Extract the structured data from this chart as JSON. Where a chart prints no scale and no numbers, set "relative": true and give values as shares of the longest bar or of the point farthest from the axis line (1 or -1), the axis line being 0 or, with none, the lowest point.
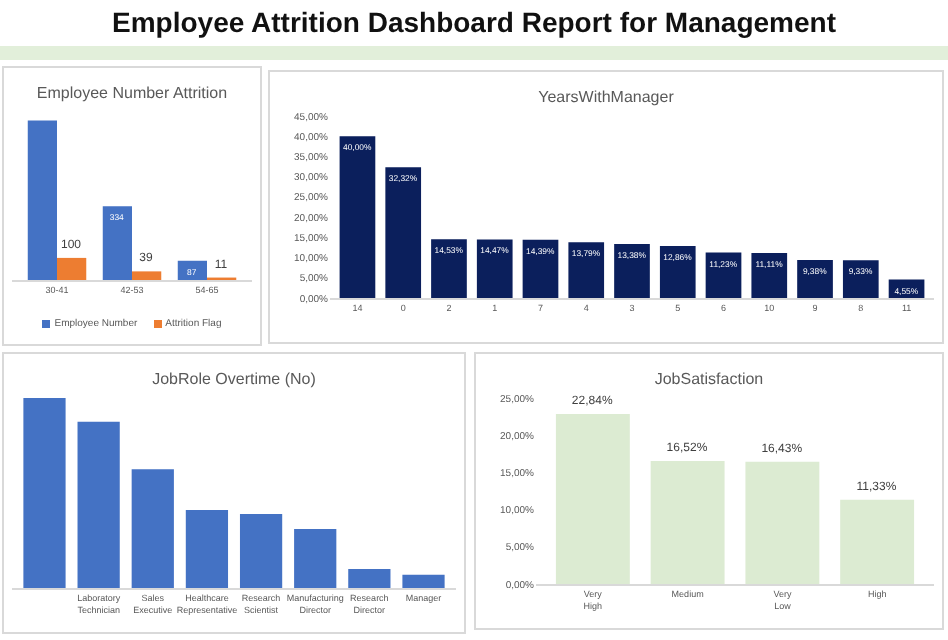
{
  "chart_data": [
    {
      "type": "other",
      "title": "Employee Attrition Dashboard Report for Management"
    },
    {
      "type": "bar",
      "title": "Employee Number Attrition",
      "categories": [
        "30-41",
        "42-53",
        "54-65"
      ],
      "legend": "bottom",
      "series": [
        {
          "name": "Employee Number",
          "color": "#4472c4",
          "values": [
            722,
            334,
            87
          ],
          "value_labels": [
            null,
            "334",
            "87"
          ]
        },
        {
          "name": "Attrition Flag",
          "color": "#ed7d31",
          "values": [
            100,
            39,
            11
          ],
          "value_labels": [
            "100",
            "39",
            "11"
          ]
        }
      ]
    },
    {
      "type": "bar",
      "title": "YearsWithManager",
      "categories": [
        "14",
        "0",
        "2",
        "1",
        "7",
        "4",
        "3",
        "5",
        "6",
        "10",
        "9",
        "8",
        "11"
      ],
      "color": "#0b1f5c",
      "values": [
        40.0,
        32.32,
        14.53,
        14.47,
        14.39,
        13.79,
        13.38,
        12.86,
        11.23,
        11.11,
        9.38,
        9.33,
        4.55
      ],
      "value_labels": [
        "40,00%",
        "32,32%",
        "14,53%",
        "14,47%",
        "14,39%",
        "13,79%",
        "13,38%",
        "12,86%",
        "11,23%",
        "11,11%",
        "9,38%",
        "9,33%",
        "4,55%"
      ],
      "ylim": [
        0,
        45
      ],
      "yticks": [
        {
          "value": 0,
          "label": "0,00%"
        },
        {
          "value": 5,
          "label": "5,00%"
        },
        {
          "value": 10,
          "label": "10,00%"
        },
        {
          "value": 15,
          "label": "15,00%"
        },
        {
          "value": 20,
          "label": "20,00%"
        },
        {
          "value": 25,
          "label": "25,00%"
        },
        {
          "value": 30,
          "label": "30,00%"
        },
        {
          "value": 35,
          "label": "35,00%"
        },
        {
          "value": 40,
          "label": "40,00%"
        },
        {
          "value": 45,
          "label": "45,00%"
        }
      ]
    },
    {
      "type": "bar",
      "title": "JobRole Overtime (No)",
      "relative": true,
      "color": "#4472c4",
      "categories": [
        null,
        "Laboratory Technician",
        "Sales Executive",
        "Healthcare Representative",
        "Research Scientist",
        "Manufacturing Director",
        "Research Director",
        "Manager"
      ],
      "values": [
        1,
        0.875,
        0.625,
        0.41,
        0.39,
        0.31,
        0.1,
        0.07
      ]
    },
    {
      "type": "bar",
      "title": "JobSatisfaction",
      "categories": [
        "Very High",
        "Medium",
        "Very Low",
        "High"
      ],
      "color": "#dcebd2",
      "values": [
        22.84,
        16.52,
        16.43,
        11.33
      ],
      "value_labels": [
        "22,84%",
        "16,52%",
        "16,43%",
        "11,33%"
      ],
      "ylim": [
        0,
        25
      ],
      "yticks": [
        {
          "value": 0,
          "label": "0,00%"
        },
        {
          "value": 5,
          "label": "5,00%"
        },
        {
          "value": 10,
          "label": "10,00%"
        },
        {
          "value": 15,
          "label": "15,00%"
        },
        {
          "value": 20,
          "label": "20,00%"
        },
        {
          "value": 25,
          "label": "25,00%"
        }
      ]
    }
  ]
}
